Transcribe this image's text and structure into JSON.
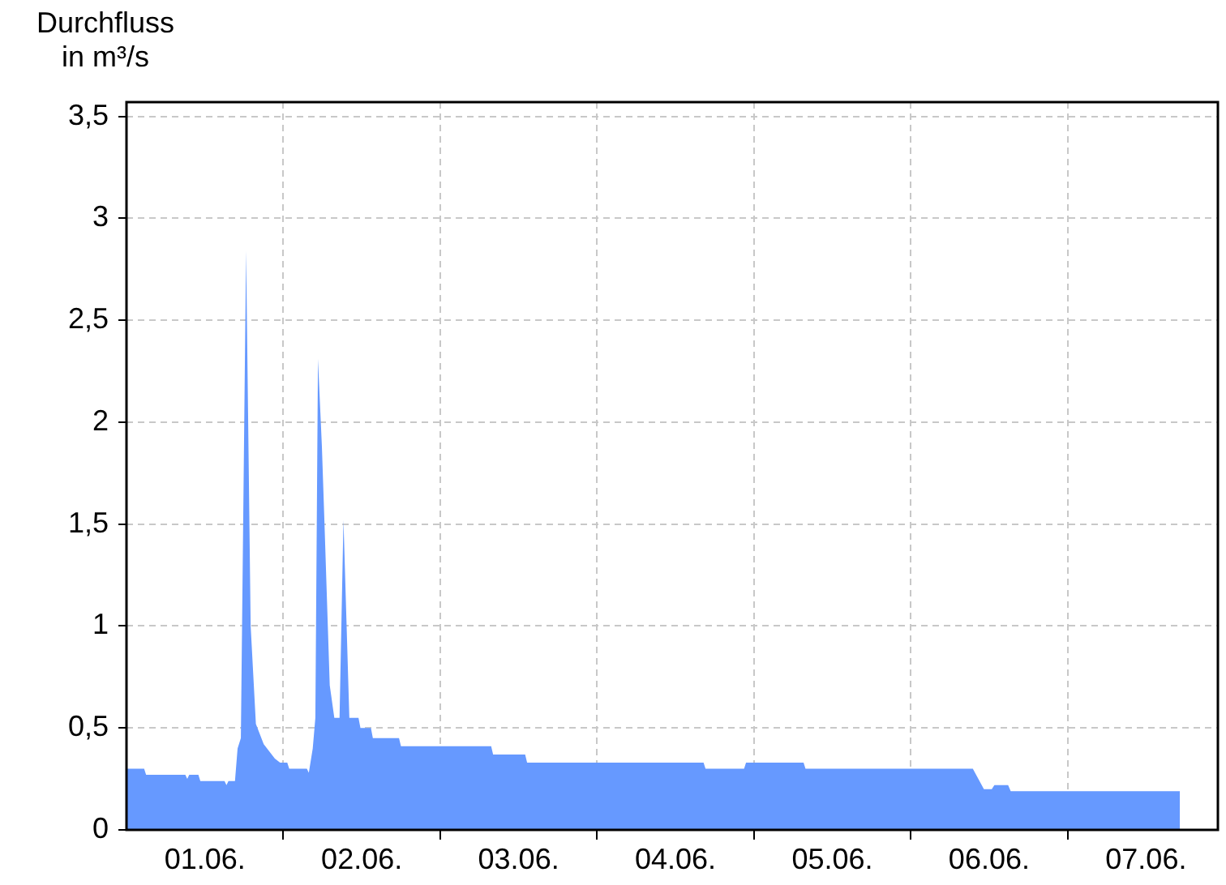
{
  "chart_data": {
    "type": "area",
    "ylabel": "Durchfluss in m³/s",
    "x": [
      "--06-01T00:00",
      "--06-01T02:42",
      "--06-01T03:00",
      "--06-01T09:00",
      "--06-01T09:18",
      "--06-01T09:36",
      "--06-01T11:00",
      "--06-01T11:18",
      "--06-01T15:00",
      "--06-01T15:18",
      "--06-01T15:36",
      "--06-01T16:36",
      "--06-01T17:00",
      "--06-01T17:30",
      "--06-01T18:18",
      "--06-01T19:00",
      "--06-01T19:48",
      "--06-01T21:00",
      "--06-01T22:42",
      "--06-01T23:30",
      "--06-02T00:36",
      "--06-02T00:54",
      "--06-02T03:36",
      "--06-02T03:54",
      "--06-02T04:30",
      "--06-02T04:54",
      "--06-02T05:18",
      "--06-02T05:54",
      "--06-02T06:18",
      "--06-02T07:06",
      "--06-02T07:48",
      "--06-02T08:36",
      "--06-02T09:12",
      "--06-02T10:06",
      "--06-02T11:30",
      "--06-02T11:48",
      "--06-02T13:24",
      "--06-02T13:42",
      "--06-02T17:42",
      "--06-02T18:00",
      "--06-03T07:48",
      "--06-03T08:06",
      "--06-03T13:00",
      "--06-03T13:18",
      "--06-04T16:18",
      "--06-04T16:36",
      "--06-04T22:30",
      "--06-04T22:48",
      "--06-05T07:36",
      "--06-05T07:54",
      "--06-06T09:30",
      "--06-06T11:12",
      "--06-06T12:24",
      "--06-06T12:48",
      "--06-06T14:54",
      "--06-06T15:18",
      "--06-07T17:12"
    ],
    "series": [
      {
        "color": "#6699ff",
        "values": [
          0.3,
          0.3,
          0.27,
          0.27,
          0.25,
          0.27,
          0.27,
          0.24,
          0.24,
          0.22,
          0.24,
          0.24,
          0.4,
          0.45,
          2.84,
          1.0,
          0.52,
          0.42,
          0.35,
          0.33,
          0.33,
          0.3,
          0.3,
          0.28,
          0.4,
          0.55,
          2.31,
          1.88,
          1.5,
          0.71,
          0.55,
          0.55,
          1.52,
          0.55,
          0.55,
          0.5,
          0.5,
          0.45,
          0.45,
          0.41,
          0.41,
          0.37,
          0.37,
          0.33,
          0.33,
          0.3,
          0.3,
          0.33,
          0.33,
          0.3,
          0.3,
          0.2,
          0.2,
          0.22,
          0.22,
          0.19,
          0.19
        ]
      }
    ],
    "xlim": [
      "--06-01T00:00",
      "--06-07T23:00"
    ],
    "xticks": [
      {
        "value": "--06-01T12:00",
        "label": "01.06."
      },
      {
        "value": "--06-02",
        "label": null
      },
      {
        "value": "--06-02T12:00",
        "label": "02.06."
      },
      {
        "value": "--06-03",
        "label": null
      },
      {
        "value": "--06-03T12:00",
        "label": "03.06."
      },
      {
        "value": "--06-04",
        "label": null
      },
      {
        "value": "--06-04T12:00",
        "label": "04.06."
      },
      {
        "value": "--06-05",
        "label": null
      },
      {
        "value": "--06-05T12:00",
        "label": "05.06."
      },
      {
        "value": "--06-06",
        "label": null
      },
      {
        "value": "--06-06T12:00",
        "label": "06.06."
      },
      {
        "value": "--06-07",
        "label": null
      },
      {
        "value": "--06-07T12:00",
        "label": "07.06."
      }
    ],
    "ylim": [
      0,
      3.57
    ],
    "yticks": [
      0,
      {
        "value": 0.5,
        "label": "0,5"
      },
      1,
      {
        "value": 1.5,
        "label": "1,5"
      },
      2,
      {
        "value": 2.5,
        "label": "2,5"
      },
      3,
      {
        "value": 3.5,
        "label": "3,5"
      }
    ],
    "grid": true
  }
}
